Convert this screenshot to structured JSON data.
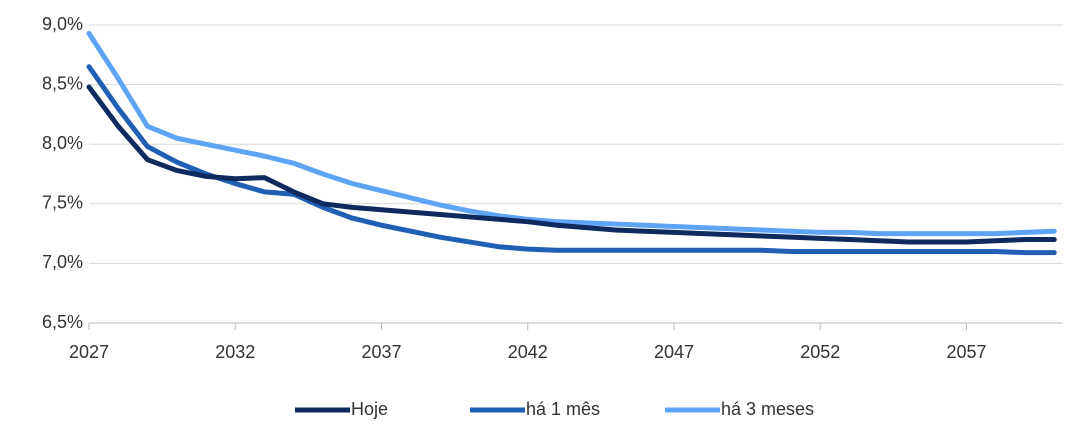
{
  "chart_data": {
    "type": "line",
    "x": [
      2027,
      2028,
      2029,
      2030,
      2031,
      2032,
      2033,
      2034,
      2035,
      2036,
      2037,
      2038,
      2039,
      2040,
      2041,
      2042,
      2043,
      2044,
      2045,
      2046,
      2047,
      2048,
      2049,
      2050,
      2051,
      2052,
      2053,
      2054,
      2055,
      2056,
      2057,
      2058,
      2059,
      2060
    ],
    "series": [
      {
        "name": "Hoje",
        "color": "#0e2a5e",
        "values": [
          8.48,
          8.15,
          7.87,
          7.78,
          7.73,
          7.71,
          7.72,
          7.6,
          7.5,
          7.47,
          7.45,
          7.43,
          7.41,
          7.39,
          7.37,
          7.35,
          7.32,
          7.3,
          7.28,
          7.27,
          7.26,
          7.25,
          7.24,
          7.23,
          7.22,
          7.21,
          7.2,
          7.19,
          7.18,
          7.18,
          7.18,
          7.19,
          7.2,
          7.2
        ]
      },
      {
        "name": "há 1 mês",
        "color": "#1f5fb4",
        "values": [
          8.65,
          8.3,
          7.98,
          7.85,
          7.75,
          7.67,
          7.6,
          7.58,
          7.47,
          7.38,
          7.32,
          7.27,
          7.22,
          7.18,
          7.14,
          7.12,
          7.11,
          7.11,
          7.11,
          7.11,
          7.11,
          7.11,
          7.11,
          7.11,
          7.1,
          7.1,
          7.1,
          7.1,
          7.1,
          7.1,
          7.1,
          7.1,
          7.09,
          7.09
        ]
      },
      {
        "name": "há 3 meses",
        "color": "#5ea4f5",
        "values": [
          8.93,
          8.55,
          8.15,
          8.05,
          8.0,
          7.95,
          7.9,
          7.84,
          7.75,
          7.67,
          7.61,
          7.55,
          7.49,
          7.44,
          7.4,
          7.37,
          7.35,
          7.34,
          7.33,
          7.32,
          7.31,
          7.3,
          7.29,
          7.28,
          7.27,
          7.26,
          7.26,
          7.25,
          7.25,
          7.25,
          7.25,
          7.25,
          7.26,
          7.27
        ]
      }
    ],
    "xlim": [
      2027,
      2060.3
    ],
    "xticks": [
      2027,
      2032,
      2037,
      2042,
      2047,
      2052,
      2057
    ],
    "ylim": [
      6.5,
      9.0
    ],
    "yticks": [
      {
        "value": 6.5,
        "label": "6,5%"
      },
      {
        "value": 7.0,
        "label": "7,0%"
      },
      {
        "value": 7.5,
        "label": "7,5%"
      },
      {
        "value": 8.0,
        "label": "8,0%"
      },
      {
        "value": 8.5,
        "label": "8,5%"
      },
      {
        "value": 9.0,
        "label": "9,0%"
      }
    ],
    "grid": true,
    "legend": "bottom"
  }
}
